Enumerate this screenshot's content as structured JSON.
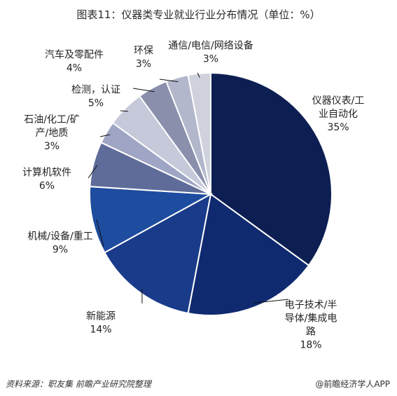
{
  "title": "图表11：仪器类专业就业行业分布情况（单位：%）",
  "source": "资料来源：职友集 前瞻产业研究院整理",
  "brand": "@前瞻经济学人APP",
  "chart_data": {
    "type": "pie",
    "title": "图表11：仪器类专业就业行业分布情况（单位：%）",
    "unit": "%",
    "categories": [
      "仪器仪表/工业自动化",
      "电子技术/半导体/集成电路",
      "新能源",
      "机械/设备/重工",
      "计算机软件",
      "石油/化工/矿产/地质",
      "检测，认证",
      "汽车及零配件",
      "环保",
      "通信/电信/网络设备"
    ],
    "values": [
      35,
      18,
      14,
      9,
      6,
      3,
      5,
      4,
      3,
      3
    ],
    "colors": [
      "#0d1f52",
      "#102a70",
      "#193b8a",
      "#1e4c9f",
      "#5f6c99",
      "#9fa5c4",
      "#c6c9d9",
      "#8a8fac",
      "#b3b7cc",
      "#cfd1dd"
    ],
    "labels": [
      {
        "lines": [
          "仪器仪表/工",
          "业自动化"
        ],
        "pct": "35%"
      },
      {
        "lines": [
          "电子技术/半",
          "导体/集成电",
          "路"
        ],
        "pct": "18%"
      },
      {
        "lines": [
          "新能源"
        ],
        "pct": "14%"
      },
      {
        "lines": [
          "机械/设备/重工"
        ],
        "pct": "9%"
      },
      {
        "lines": [
          "计算机软件"
        ],
        "pct": "6%"
      },
      {
        "lines": [
          "石油/化工/矿",
          "产/地质"
        ],
        "pct": "3%"
      },
      {
        "lines": [
          "检测，认证"
        ],
        "pct": "5%"
      },
      {
        "lines": [
          "汽车及零配件"
        ],
        "pct": "4%"
      },
      {
        "lines": [
          "环保"
        ],
        "pct": "3%"
      },
      {
        "lines": [
          "通信/电信/网络设备"
        ],
        "pct": "3%"
      }
    ]
  }
}
